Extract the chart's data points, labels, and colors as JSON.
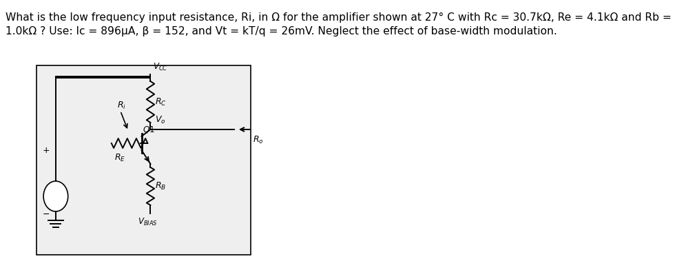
{
  "title_line1": "What is the low frequency input resistance, Ri, in Ω for the amplifier shown at 27° C with Rc = 30.7kΩ, Re = 4.1kΩ and Rb =",
  "title_line2": "1.0kΩ ? Use: Ic = 896μA, β = 152, and Vt = kT/q = 26mV. Neglect the effect of base-width modulation.",
  "bg_color": "#ffffff",
  "text_color": "#000000",
  "font_size_title": 11.2,
  "font_size_label": 9.0
}
